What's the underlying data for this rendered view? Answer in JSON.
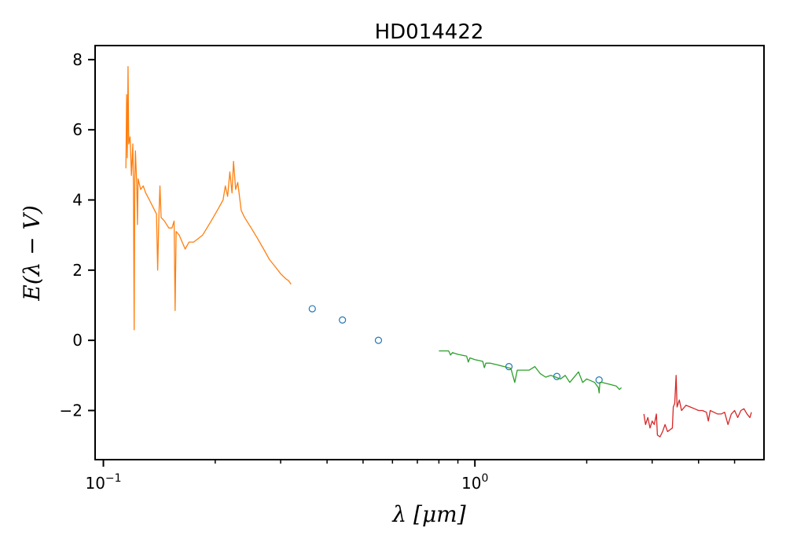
{
  "chart_data": {
    "type": "line",
    "title": "HD014422",
    "xlabel": "λ [μm]",
    "ylabel": "E(λ − V)",
    "x_scale": "log",
    "xlim": [
      0.095,
      6.0
    ],
    "ylim": [
      -3.4,
      8.4
    ],
    "grid": false,
    "x_major_ticks": [
      {
        "value": 0.1,
        "label": "10",
        "exp": "−1"
      },
      {
        "value": 1.0,
        "label": "10",
        "exp": "0"
      }
    ],
    "x_minor_ticks": [
      0.2,
      0.3,
      0.4,
      0.5,
      0.6,
      0.7,
      0.8,
      0.9,
      2,
      3,
      4,
      5
    ],
    "y_ticks": [
      {
        "value": -2,
        "label": "−2"
      },
      {
        "value": 0,
        "label": "0"
      },
      {
        "value": 2,
        "label": "2"
      },
      {
        "value": 4,
        "label": "4"
      },
      {
        "value": 6,
        "label": "6"
      },
      {
        "value": 8,
        "label": "8"
      }
    ],
    "series": [
      {
        "kind": "line",
        "color": "#ff7f0e",
        "points": [
          [
            0.115,
            4.9
          ],
          [
            0.1155,
            7.0
          ],
          [
            0.116,
            5.2
          ],
          [
            0.1165,
            7.8
          ],
          [
            0.117,
            5.6
          ],
          [
            0.118,
            5.8
          ],
          [
            0.119,
            4.7
          ],
          [
            0.12,
            5.6
          ],
          [
            0.1205,
            4.4
          ],
          [
            0.121,
            0.3
          ],
          [
            0.1215,
            4.6
          ],
          [
            0.122,
            5.4
          ],
          [
            0.123,
            4.4
          ],
          [
            0.1235,
            3.3
          ],
          [
            0.124,
            4.6
          ],
          [
            0.126,
            4.3
          ],
          [
            0.128,
            4.4
          ],
          [
            0.13,
            4.2
          ],
          [
            0.133,
            4.0
          ],
          [
            0.136,
            3.8
          ],
          [
            0.139,
            3.6
          ],
          [
            0.14,
            2.0
          ],
          [
            0.141,
            3.5
          ],
          [
            0.142,
            4.4
          ],
          [
            0.143,
            3.5
          ],
          [
            0.146,
            3.4
          ],
          [
            0.15,
            3.2
          ],
          [
            0.153,
            3.2
          ],
          [
            0.155,
            3.4
          ],
          [
            0.156,
            0.85
          ],
          [
            0.157,
            3.1
          ],
          [
            0.16,
            3.0
          ],
          [
            0.163,
            2.8
          ],
          [
            0.166,
            2.6
          ],
          [
            0.17,
            2.8
          ],
          [
            0.175,
            2.8
          ],
          [
            0.18,
            2.9
          ],
          [
            0.185,
            3.0
          ],
          [
            0.19,
            3.2
          ],
          [
            0.195,
            3.4
          ],
          [
            0.2,
            3.6
          ],
          [
            0.205,
            3.8
          ],
          [
            0.21,
            4.0
          ],
          [
            0.213,
            4.4
          ],
          [
            0.216,
            4.1
          ],
          [
            0.219,
            4.8
          ],
          [
            0.222,
            4.2
          ],
          [
            0.224,
            5.1
          ],
          [
            0.227,
            4.3
          ],
          [
            0.23,
            4.5
          ],
          [
            0.235,
            3.7
          ],
          [
            0.24,
            3.5
          ],
          [
            0.25,
            3.2
          ],
          [
            0.26,
            2.9
          ],
          [
            0.27,
            2.6
          ],
          [
            0.28,
            2.3
          ],
          [
            0.29,
            2.1
          ],
          [
            0.3,
            1.9
          ],
          [
            0.31,
            1.75
          ],
          [
            0.315,
            1.7
          ],
          [
            0.32,
            1.6
          ]
        ]
      },
      {
        "kind": "markers",
        "color": "#1f77b4",
        "points": [
          [
            0.365,
            0.9
          ],
          [
            0.44,
            0.58
          ],
          [
            0.55,
            0.0
          ],
          [
            1.235,
            -0.75
          ],
          [
            1.662,
            -1.03
          ],
          [
            2.159,
            -1.13
          ]
        ]
      },
      {
        "kind": "line",
        "color": "#2ca02c",
        "points": [
          [
            0.8,
            -0.3
          ],
          [
            0.85,
            -0.3
          ],
          [
            0.86,
            -0.42
          ],
          [
            0.87,
            -0.35
          ],
          [
            0.9,
            -0.4
          ],
          [
            0.95,
            -0.45
          ],
          [
            0.96,
            -0.62
          ],
          [
            0.97,
            -0.5
          ],
          [
            1.0,
            -0.55
          ],
          [
            1.05,
            -0.6
          ],
          [
            1.06,
            -0.78
          ],
          [
            1.07,
            -0.65
          ],
          [
            1.1,
            -0.65
          ],
          [
            1.15,
            -0.7
          ],
          [
            1.2,
            -0.75
          ],
          [
            1.25,
            -0.8
          ],
          [
            1.28,
            -1.2
          ],
          [
            1.3,
            -0.85
          ],
          [
            1.35,
            -0.85
          ],
          [
            1.4,
            -0.85
          ],
          [
            1.45,
            -0.75
          ],
          [
            1.5,
            -0.95
          ],
          [
            1.55,
            -1.05
          ],
          [
            1.6,
            -1.0
          ],
          [
            1.65,
            -1.05
          ],
          [
            1.7,
            -1.1
          ],
          [
            1.75,
            -1.0
          ],
          [
            1.8,
            -1.2
          ],
          [
            1.9,
            -0.9
          ],
          [
            1.95,
            -1.2
          ],
          [
            2.0,
            -1.1
          ],
          [
            2.1,
            -1.2
          ],
          [
            2.15,
            -1.35
          ],
          [
            2.16,
            -1.5
          ],
          [
            2.17,
            -1.2
          ],
          [
            2.2,
            -1.2
          ],
          [
            2.3,
            -1.25
          ],
          [
            2.4,
            -1.3
          ],
          [
            2.45,
            -1.4
          ],
          [
            2.48,
            -1.35
          ]
        ]
      },
      {
        "kind": "line",
        "color": "#d62728",
        "points": [
          [
            2.85,
            -2.1
          ],
          [
            2.88,
            -2.4
          ],
          [
            2.92,
            -2.2
          ],
          [
            2.96,
            -2.5
          ],
          [
            3.0,
            -2.3
          ],
          [
            3.04,
            -2.4
          ],
          [
            3.08,
            -2.1
          ],
          [
            3.1,
            -2.7
          ],
          [
            3.15,
            -2.75
          ],
          [
            3.2,
            -2.6
          ],
          [
            3.25,
            -2.4
          ],
          [
            3.3,
            -2.6
          ],
          [
            3.35,
            -2.55
          ],
          [
            3.4,
            -2.5
          ],
          [
            3.42,
            -1.9
          ],
          [
            3.45,
            -1.8
          ],
          [
            3.48,
            -1.0
          ],
          [
            3.5,
            -1.9
          ],
          [
            3.55,
            -1.7
          ],
          [
            3.6,
            -2.0
          ],
          [
            3.7,
            -1.85
          ],
          [
            3.8,
            -1.9
          ],
          [
            3.9,
            -1.95
          ],
          [
            4.0,
            -2.0
          ],
          [
            4.1,
            -2.0
          ],
          [
            4.2,
            -2.05
          ],
          [
            4.25,
            -2.3
          ],
          [
            4.3,
            -2.0
          ],
          [
            4.4,
            -2.05
          ],
          [
            4.5,
            -2.1
          ],
          [
            4.6,
            -2.1
          ],
          [
            4.7,
            -2.05
          ],
          [
            4.8,
            -2.4
          ],
          [
            4.9,
            -2.1
          ],
          [
            5.0,
            -2.0
          ],
          [
            5.1,
            -2.2
          ],
          [
            5.2,
            -2.0
          ],
          [
            5.3,
            -1.95
          ],
          [
            5.4,
            -2.1
          ],
          [
            5.5,
            -2.2
          ],
          [
            5.55,
            -2.05
          ]
        ]
      }
    ]
  }
}
